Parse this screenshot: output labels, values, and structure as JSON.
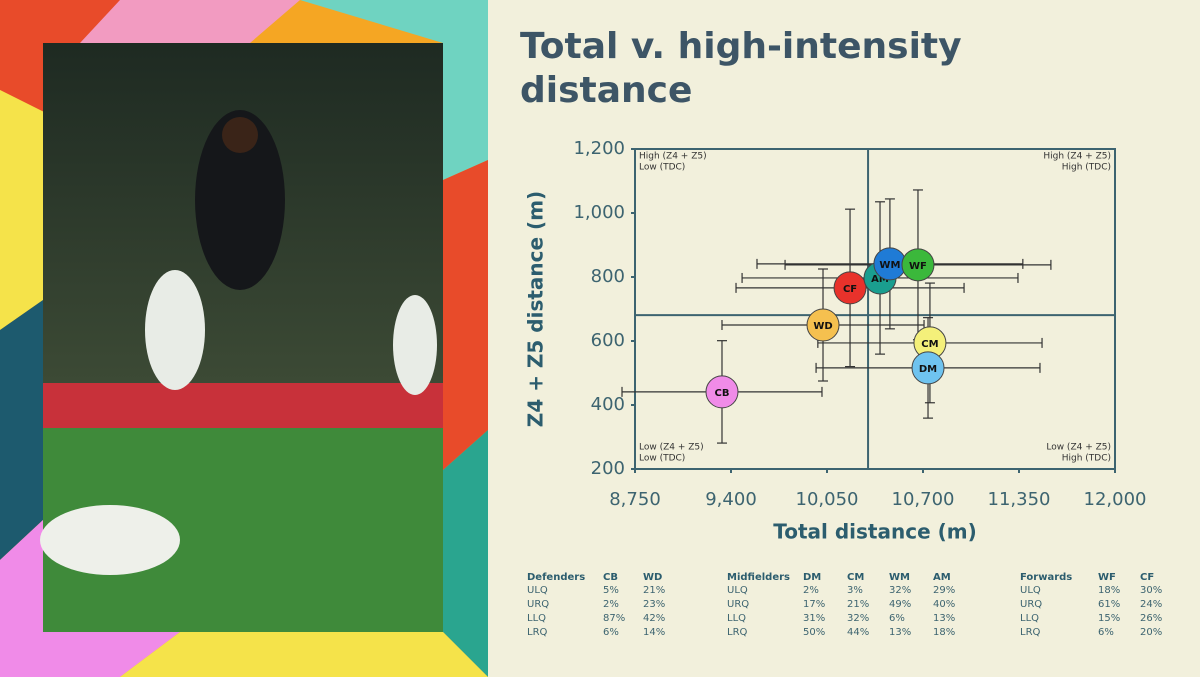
{
  "title": [
    "Total v. high-intensity",
    "distance"
  ],
  "chart_data": {
    "type": "scatter",
    "x_label": "Total distance (m)",
    "y_label": "Z4 + Z5 distance (m)",
    "categories": [
      "CB",
      "WD",
      "CF",
      "AM",
      "WM",
      "WF",
      "CM",
      "DM"
    ],
    "x": [
      9339,
      10023,
      10206,
      10409,
      10476,
      10666,
      10747,
      10734
    ],
    "values": [
      441,
      650,
      766,
      797,
      841,
      838,
      594,
      516
    ],
    "xerr": [
      677,
      684,
      772,
      934,
      900,
      900,
      759,
      758
    ],
    "yerr": [
      160,
      175,
      246,
      238,
      203,
      234,
      187,
      157
    ],
    "colors": [
      "#f08be8",
      "#f5c04f",
      "#e8322b",
      "#1a9e8f",
      "#1f7bd6",
      "#3bb83b",
      "#f4f07a",
      "#6fc3ef"
    ],
    "xlim": [
      8750,
      12000
    ],
    "xticks": [
      {
        "value": 8750,
        "label": "8,750"
      },
      {
        "value": 9400,
        "label": "9,400"
      },
      {
        "value": 10050,
        "label": "10,050"
      },
      {
        "value": 10700,
        "label": "10,700"
      },
      {
        "value": 11350,
        "label": "11,350"
      },
      {
        "value": 12000,
        "label": "12,000"
      }
    ],
    "ylim": [
      200,
      1200
    ],
    "yticks": [
      200,
      400,
      600,
      800,
      {
        "value": 1000,
        "label": "1,000"
      },
      {
        "value": 1200,
        "label": "1,200"
      }
    ],
    "xsplit": 10328,
    "ysplit": 681,
    "quadrant_labels": {
      "upper_left": [
        "High (Z4 + Z5)",
        "Low (TDC)"
      ],
      "upper_right": [
        "High (Z4 + Z5)",
        "High (TDC)"
      ],
      "lower_left": [
        "Low (Z4 + Z5)",
        "Low (TDC)"
      ],
      "lower_right": [
        "Low (Z4 + Z5)",
        "High (TDC)"
      ]
    }
  },
  "tables": [
    {
      "headers": [
        "Defenders",
        "CB",
        "WD"
      ],
      "rows": [
        [
          "ULQ",
          "5%",
          "21%"
        ],
        [
          "URQ",
          "2%",
          "23%"
        ],
        [
          "LLQ",
          "87%",
          "42%"
        ],
        [
          "LRQ",
          "6%",
          "14%"
        ]
      ]
    },
    {
      "headers": [
        "Midfielders",
        "DM",
        "CM",
        "WM",
        "AM"
      ],
      "rows": [
        [
          "ULQ",
          "2%",
          "3%",
          "32%",
          "29%"
        ],
        [
          "URQ",
          "17%",
          "21%",
          "49%",
          "40%"
        ],
        [
          "LLQ",
          "31%",
          "32%",
          "6%",
          "13%"
        ],
        [
          "LRQ",
          "50%",
          "44%",
          "13%",
          "18%"
        ]
      ]
    },
    {
      "headers": [
        "Forwards",
        "WF",
        "CF"
      ],
      "rows": [
        [
          "ULQ",
          "18%",
          "30%"
        ],
        [
          "URQ",
          "61%",
          "24%"
        ],
        [
          "LLQ",
          "15%",
          "26%"
        ],
        [
          "LRQ",
          "6%",
          "20%"
        ]
      ]
    }
  ]
}
